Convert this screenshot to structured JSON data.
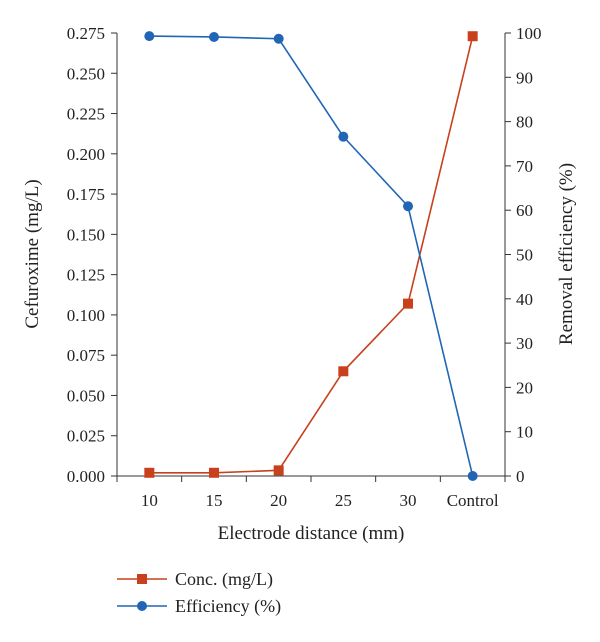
{
  "chart_data": {
    "type": "line",
    "categories": [
      "10",
      "15",
      "20",
      "25",
      "30",
      "Control"
    ],
    "xlabel": "Electrode distance (mm)",
    "ylabel_left": "Cefuroxime (mg/L)",
    "ylabel_right": "Removal efficiency (%)",
    "ylim_left": [
      0,
      0.275
    ],
    "ylim_right": [
      0,
      100
    ],
    "yticks_left": [
      "0.000",
      "0.025",
      "0.050",
      "0.075",
      "0.100",
      "0.125",
      "0.150",
      "0.175",
      "0.200",
      "0.225",
      "0.250",
      "0.275"
    ],
    "yticks_right": [
      "0",
      "10",
      "20",
      "30",
      "40",
      "50",
      "60",
      "70",
      "80",
      "90",
      "100"
    ],
    "series": [
      {
        "name": "Conc. (mg/L)",
        "axis": "left",
        "marker": "square",
        "color": "#c8401c",
        "values": [
          0.002,
          0.002,
          0.0035,
          0.065,
          0.107,
          0.273
        ]
      },
      {
        "name": "Efficiency (%)",
        "axis": "right",
        "marker": "circle",
        "color": "#2166b5",
        "values": [
          99.3,
          99.1,
          98.7,
          76.6,
          60.9,
          0
        ]
      }
    ],
    "grid": false,
    "legend_position": "bottom-left"
  }
}
